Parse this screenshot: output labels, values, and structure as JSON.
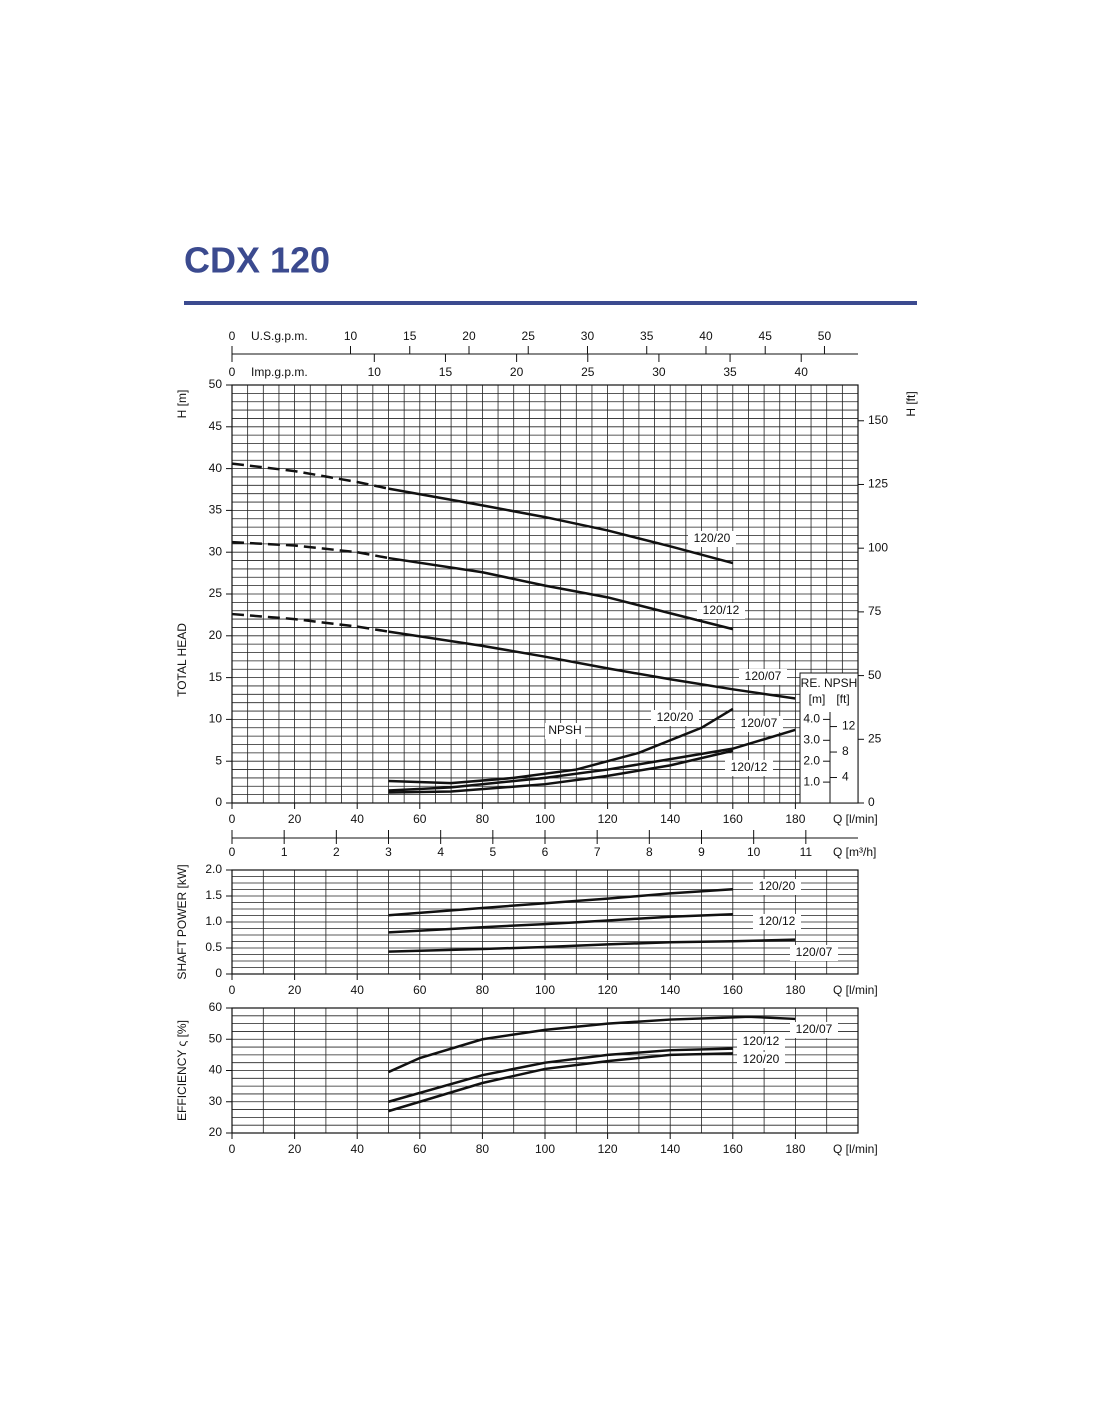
{
  "header": {
    "title": "CDX 120"
  },
  "chart_data": [
    {
      "type": "line",
      "xlim": [
        0,
        200
      ],
      "xticks": [
        0,
        20,
        40,
        60,
        80,
        100,
        120,
        140,
        160,
        180
      ],
      "xlabel": "Q [l/min]",
      "ylim": [
        0,
        50
      ],
      "yticks": [
        0,
        5,
        10,
        15,
        20,
        25,
        30,
        35,
        40,
        45,
        50
      ],
      "yunit": "H [m]",
      "ylabel": "TOTAL HEAD",
      "y2lim": [
        0,
        164.04
      ],
      "y2ticks": [
        0,
        25,
        50,
        75,
        100,
        125,
        150
      ],
      "y2label": "H [ft]",
      "grid": {
        "x": 5,
        "y": 1
      },
      "top_axes": [
        {
          "label": "U.S.g.p.m.",
          "lim": [
            0,
            52.83
          ],
          "ticks": [
            0,
            10,
            15,
            20,
            25,
            30,
            35,
            40,
            45,
            50
          ]
        },
        {
          "label": "Imp.g.p.m.",
          "lim": [
            0,
            43.99
          ],
          "ticks": [
            0,
            10,
            15,
            20,
            25,
            30,
            35,
            40
          ]
        }
      ],
      "bottom_axis": {
        "label": "Q [m³/h]",
        "lim": [
          0,
          12
        ],
        "ticks": [
          0,
          1,
          2,
          3,
          4,
          5,
          6,
          7,
          8,
          9,
          10,
          11
        ]
      },
      "series": [
        {
          "name": "120/20",
          "color": "#111111",
          "x": [
            50,
            80,
            100,
            120,
            140,
            160
          ],
          "values": [
            37.6,
            35.6,
            34.2,
            32.6,
            30.7,
            28.7
          ],
          "extrapolated": {
            "x": [
              0,
              20,
              40,
              50
            ],
            "values": [
              40.6,
              39.7,
              38.4,
              37.6
            ]
          }
        },
        {
          "name": "120/12",
          "color": "#111111",
          "x": [
            50,
            80,
            100,
            120,
            140,
            160
          ],
          "values": [
            29.3,
            27.6,
            26.0,
            24.6,
            22.7,
            20.8
          ],
          "extrapolated": {
            "x": [
              0,
              20,
              40,
              50
            ],
            "values": [
              31.2,
              30.8,
              30.0,
              29.3
            ]
          }
        },
        {
          "name": "120/07",
          "color": "#111111",
          "x": [
            50,
            80,
            100,
            120,
            140,
            160,
            180
          ],
          "values": [
            20.5,
            18.8,
            17.5,
            16.1,
            14.8,
            13.6,
            12.5
          ],
          "extrapolated": {
            "x": [
              0,
              20,
              40,
              50
            ],
            "values": [
              22.6,
              22.0,
              21.1,
              20.5
            ]
          }
        }
      ]
    },
    {
      "type": "line",
      "label": "NPSH",
      "ylabel": "RE. NPSH",
      "yunit": "[m]",
      "y2unit": "[ft]",
      "xlim": [
        0,
        200
      ],
      "ylim": [
        0,
        20
      ],
      "yticks": [
        {
          "value": 1,
          "label": "1.0"
        },
        {
          "value": 2,
          "label": "2.0"
        },
        {
          "value": 3,
          "label": "3.0"
        },
        {
          "value": 4,
          "label": "4.0"
        }
      ],
      "y2lim": [
        0,
        65.62
      ],
      "y2ticks": [
        4,
        8,
        12
      ],
      "series": [
        {
          "name": "120/20",
          "color": "#111111",
          "x": [
            50,
            70,
            90,
            110,
            130,
            150,
            160
          ],
          "values": [
            1.05,
            0.95,
            1.2,
            1.6,
            2.4,
            3.6,
            4.5
          ]
        },
        {
          "name": "120/07",
          "color": "#111111",
          "x": [
            50,
            70,
            100,
            120,
            140,
            160,
            180
          ],
          "values": [
            0.6,
            0.75,
            1.2,
            1.6,
            2.1,
            2.6,
            3.5
          ]
        },
        {
          "name": "120/12",
          "color": "#111111",
          "x": [
            50,
            70,
            100,
            120,
            140,
            160
          ],
          "values": [
            0.5,
            0.55,
            0.9,
            1.3,
            1.8,
            2.5
          ]
        }
      ]
    },
    {
      "type": "line",
      "xlim": [
        0,
        200
      ],
      "xticks": [
        0,
        20,
        40,
        60,
        80,
        100,
        120,
        140,
        160,
        180
      ],
      "xlabel": "Q [l/min]",
      "ylim": [
        0,
        2
      ],
      "yticks": [
        0,
        0.5,
        {
          "value": 1,
          "label": "1.0"
        },
        1.5,
        {
          "value": 2,
          "label": "2.0"
        }
      ],
      "ylabel": "SHAFT POWER  [kW]",
      "grid": {
        "x": 10,
        "y": 0.125
      },
      "series": [
        {
          "name": "120/20",
          "color": "#111111",
          "x": [
            50,
            80,
            100,
            120,
            140,
            160
          ],
          "values": [
            1.13,
            1.27,
            1.36,
            1.45,
            1.55,
            1.63
          ]
        },
        {
          "name": "120/12",
          "color": "#111111",
          "x": [
            50,
            80,
            100,
            120,
            140,
            160
          ],
          "values": [
            0.8,
            0.9,
            0.96,
            1.03,
            1.1,
            1.15
          ]
        },
        {
          "name": "120/07",
          "color": "#111111",
          "x": [
            50,
            80,
            100,
            120,
            140,
            160,
            180
          ],
          "values": [
            0.43,
            0.48,
            0.52,
            0.57,
            0.61,
            0.63,
            0.66
          ]
        }
      ]
    },
    {
      "type": "line",
      "xlim": [
        0,
        200
      ],
      "xticks": [
        0,
        20,
        40,
        60,
        80,
        100,
        120,
        140,
        160,
        180
      ],
      "xlabel": "Q [l/min]",
      "ylim": [
        20,
        60
      ],
      "yticks": [
        20,
        30,
        40,
        50,
        60
      ],
      "ylabel": "EFFICIENCY   ς [%]",
      "grid": {
        "x": 10,
        "y": 2.5
      },
      "series": [
        {
          "name": "120/07",
          "color": "#111111",
          "x": [
            50,
            60,
            80,
            100,
            120,
            140,
            160,
            165,
            180
          ],
          "values": [
            39.5,
            44,
            50,
            53,
            55,
            56.3,
            57,
            57.2,
            56.5
          ]
        },
        {
          "name": "120/12",
          "color": "#111111",
          "x": [
            50,
            80,
            100,
            120,
            140,
            160
          ],
          "values": [
            30,
            38.5,
            42.5,
            45,
            46.5,
            47
          ]
        },
        {
          "name": "120/20",
          "color": "#111111",
          "x": [
            50,
            80,
            100,
            120,
            140,
            160
          ],
          "values": [
            27,
            36,
            40.5,
            43,
            45,
            45.5
          ]
        }
      ]
    }
  ]
}
